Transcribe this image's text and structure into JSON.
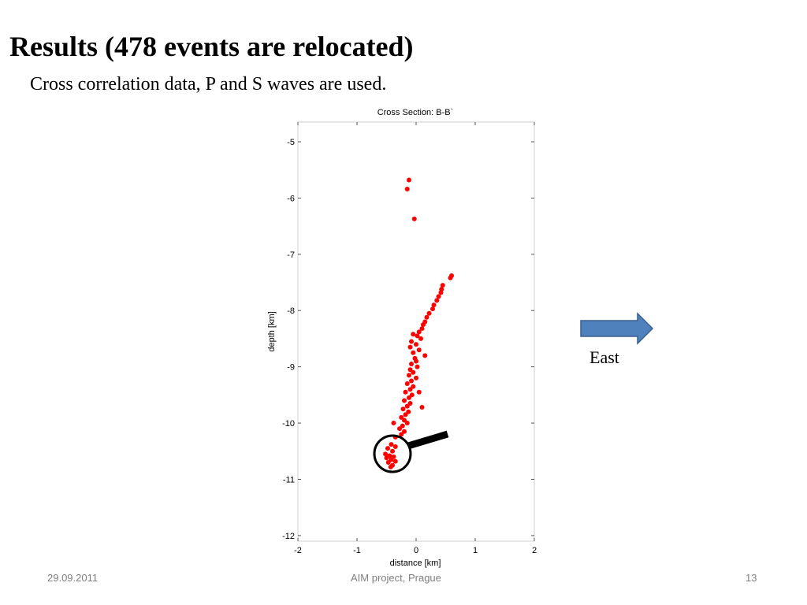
{
  "slide": {
    "title": "Results (478 events are relocated)",
    "subtitle": "Cross correlation data, P and S waves are used.",
    "footer_date": "29.09.2011",
    "footer_center": "AIM project, Prague",
    "page_number": "13",
    "arrow_label": "East",
    "arrow_color": "#4f81bd"
  },
  "chart_data": {
    "type": "scatter",
    "title": "Cross Section: B-B`",
    "xlabel": "distance [km]",
    "ylabel": "depth [km]",
    "xlim": [
      -2,
      2
    ],
    "ylim": [
      -12.1,
      -4.65
    ],
    "xticks": [
      -2,
      -1,
      0,
      1,
      2
    ],
    "yticks": [
      -12,
      -11,
      -10,
      -9,
      -8,
      -7,
      -6,
      -5
    ],
    "grid": false,
    "marker_color": "#ff0000",
    "series": [
      {
        "points": [
          [
            -0.12,
            -5.68
          ],
          [
            -0.15,
            -5.84
          ],
          [
            -0.03,
            -6.37
          ],
          [
            0.6,
            -7.38
          ],
          [
            0.58,
            -7.42
          ],
          [
            0.45,
            -7.55
          ],
          [
            0.43,
            -7.62
          ],
          [
            0.42,
            -7.68
          ],
          [
            0.38,
            -7.75
          ],
          [
            0.35,
            -7.82
          ],
          [
            0.3,
            -7.9
          ],
          [
            0.28,
            -7.97
          ],
          [
            0.22,
            -8.05
          ],
          [
            0.18,
            -8.12
          ],
          [
            0.15,
            -8.2
          ],
          [
            0.12,
            -8.25
          ],
          [
            0.1,
            -8.32
          ],
          [
            0.05,
            -8.38
          ],
          [
            0.02,
            -8.45
          ],
          [
            -0.05,
            -8.42
          ],
          [
            0.08,
            -8.5
          ],
          [
            -0.08,
            -8.55
          ],
          [
            0.0,
            -8.6
          ],
          [
            -0.1,
            -8.65
          ],
          [
            0.05,
            -8.7
          ],
          [
            -0.05,
            -8.75
          ],
          [
            0.15,
            -8.8
          ],
          [
            -0.02,
            -8.85
          ],
          [
            0.0,
            -8.9
          ],
          [
            -0.08,
            -8.95
          ],
          [
            0.02,
            -9.0
          ],
          [
            -0.1,
            -9.05
          ],
          [
            -0.05,
            -9.1
          ],
          [
            -0.12,
            -9.15
          ],
          [
            0.0,
            -9.2
          ],
          [
            -0.08,
            -9.25
          ],
          [
            -0.15,
            -9.3
          ],
          [
            -0.05,
            -9.35
          ],
          [
            -0.1,
            -9.4
          ],
          [
            -0.18,
            -9.45
          ],
          [
            -0.07,
            -9.5
          ],
          [
            -0.12,
            -9.55
          ],
          [
            -0.2,
            -9.6
          ],
          [
            -0.1,
            -9.65
          ],
          [
            -0.15,
            -9.7
          ],
          [
            -0.22,
            -9.75
          ],
          [
            -0.13,
            -9.8
          ],
          [
            -0.18,
            -9.85
          ],
          [
            -0.25,
            -9.9
          ],
          [
            -0.2,
            -9.95
          ],
          [
            -0.15,
            -10.0
          ],
          [
            -0.23,
            -10.05
          ],
          [
            -0.28,
            -10.1
          ],
          [
            -0.2,
            -10.15
          ],
          [
            -0.25,
            -10.2
          ],
          [
            -0.35,
            -10.25
          ],
          [
            0.1,
            -9.72
          ],
          [
            0.05,
            -9.45
          ],
          [
            -0.38,
            -10.0
          ],
          [
            -0.42,
            -10.38
          ],
          [
            -0.35,
            -10.42
          ],
          [
            -0.48,
            -10.45
          ],
          [
            -0.4,
            -10.5
          ],
          [
            -0.52,
            -10.55
          ],
          [
            -0.45,
            -10.58
          ],
          [
            -0.38,
            -10.6
          ],
          [
            -0.5,
            -10.62
          ],
          [
            -0.42,
            -10.65
          ],
          [
            -0.35,
            -10.68
          ],
          [
            -0.47,
            -10.7
          ],
          [
            -0.4,
            -10.75
          ],
          [
            -0.43,
            -10.78
          ]
        ]
      }
    ],
    "annotation": "circle around the deepest event cluster"
  }
}
